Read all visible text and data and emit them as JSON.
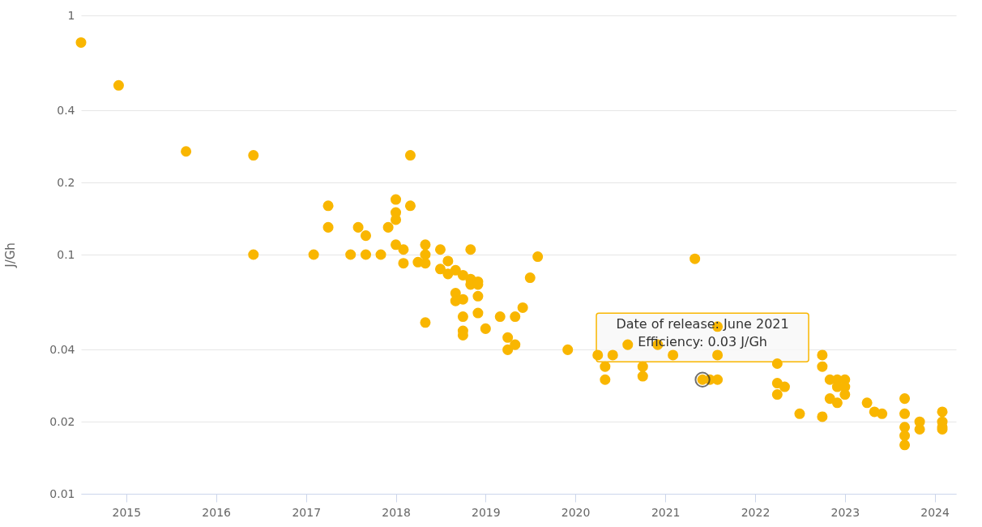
{
  "chart_data": {
    "type": "scatter",
    "ylabel": "J/Gh",
    "log": "y",
    "grid": "y",
    "marker": "circle",
    "legend": false,
    "xlim": [
      "2014-07-01",
      "2024-03-28"
    ],
    "xticks": [
      "2015",
      "2016",
      "2017",
      "2018",
      "2019",
      "2020",
      "2021",
      "2022",
      "2023",
      "2024"
    ],
    "ylim": [
      0.01,
      1
    ],
    "yticks": [
      0.01,
      0.02,
      0.04,
      0.1,
      0.2,
      0.4,
      1
    ],
    "annotations": [
      {
        "text": "Date of release: June 2021\nEfficiency: 0.03 J/Gh",
        "x": "2021-06",
        "y": 0.03
      }
    ],
    "series": [
      {
        "color": "#f9b600",
        "x": [
          "2014-07",
          "2014-12",
          "2015-09",
          "2016-06",
          "2016-06",
          "2017-02",
          "2017-04",
          "2017-04",
          "2017-07",
          "2017-08",
          "2017-09",
          "2017-09",
          "2017-11",
          "2017-12",
          "2018-01",
          "2018-01",
          "2018-01",
          "2018-01",
          "2018-02",
          "2018-02",
          "2018-03",
          "2018-03",
          "2018-04",
          "2018-05",
          "2018-05",
          "2018-05",
          "2018-05",
          "2018-07",
          "2018-07",
          "2018-08",
          "2018-08",
          "2018-09",
          "2018-09",
          "2018-09",
          "2018-10",
          "2018-10",
          "2018-10",
          "2018-10",
          "2018-10",
          "2018-11",
          "2018-11",
          "2018-11",
          "2018-12",
          "2018-12",
          "2018-12",
          "2018-12",
          "2019-01",
          "2019-03",
          "2019-04",
          "2019-04",
          "2019-05",
          "2019-05",
          "2019-06",
          "2019-07",
          "2019-08",
          "2019-12",
          "2020-04",
          "2020-05",
          "2020-05",
          "2020-06",
          "2020-08",
          "2020-10",
          "2020-10",
          "2020-12",
          "2021-02",
          "2021-05",
          "2021-06",
          "2021-07",
          "2021-08",
          "2021-08",
          "2021-08",
          "2022-04",
          "2022-04",
          "2022-04",
          "2022-05",
          "2022-07",
          "2022-10",
          "2022-10",
          "2022-10",
          "2022-11",
          "2022-11",
          "2022-12",
          "2022-12",
          "2022-12",
          "2023-01",
          "2023-01",
          "2023-01",
          "2023-04",
          "2023-05",
          "2023-06",
          "2023-09",
          "2023-09",
          "2023-09",
          "2023-09",
          "2023-09",
          "2023-11",
          "2023-11",
          "2024-02",
          "2024-02",
          "2024-02",
          "2024-02"
        ],
        "values": [
          0.77,
          0.51,
          0.27,
          0.26,
          0.1,
          0.1,
          0.16,
          0.13,
          0.1,
          0.13,
          0.12,
          0.1,
          0.1,
          0.13,
          0.17,
          0.15,
          0.14,
          0.11,
          0.105,
          0.092,
          0.26,
          0.16,
          0.093,
          0.11,
          0.1,
          0.092,
          0.052,
          0.105,
          0.087,
          0.094,
          0.083,
          0.086,
          0.069,
          0.064,
          0.082,
          0.065,
          0.055,
          0.048,
          0.046,
          0.105,
          0.079,
          0.075,
          0.077,
          0.075,
          0.067,
          0.057,
          0.049,
          0.055,
          0.045,
          0.04,
          0.042,
          0.055,
          0.06,
          0.08,
          0.098,
          0.04,
          0.038,
          0.034,
          0.03,
          0.038,
          0.042,
          0.034,
          0.031,
          0.042,
          0.038,
          0.096,
          0.03,
          0.03,
          0.03,
          0.038,
          0.05,
          0.035,
          0.029,
          0.026,
          0.028,
          0.0216,
          0.038,
          0.034,
          0.021,
          0.03,
          0.025,
          0.03,
          0.028,
          0.024,
          0.03,
          0.028,
          0.026,
          0.024,
          0.022,
          0.0216,
          0.025,
          0.0216,
          0.019,
          0.0175,
          0.016,
          0.02,
          0.0186,
          0.022,
          0.02,
          0.019,
          0.0186
        ]
      }
    ]
  }
}
